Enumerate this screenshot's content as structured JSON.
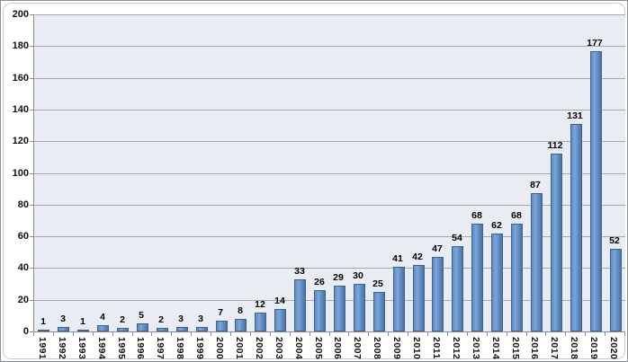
{
  "chart_data": {
    "type": "bar",
    "title": "",
    "xlabel": "",
    "ylabel": "",
    "categories": [
      "1991",
      "1992",
      "1993",
      "1994",
      "1995",
      "1996",
      "1997",
      "1998",
      "1999",
      "2000",
      "2001",
      "2002",
      "2003",
      "2004",
      "2005",
      "2006",
      "2007",
      "2008",
      "2009",
      "2010",
      "2011",
      "2012",
      "2013",
      "2014",
      "2015",
      "2016",
      "2017",
      "2018",
      "2019",
      "2020"
    ],
    "values": [
      1,
      3,
      1,
      4,
      2,
      5,
      2,
      3,
      3,
      7,
      8,
      12,
      14,
      33,
      26,
      29,
      30,
      25,
      41,
      42,
      47,
      54,
      68,
      62,
      68,
      87,
      112,
      131,
      177,
      52
    ],
    "data_labels_shown": true,
    "ylim": [
      0,
      200
    ],
    "ytick_step": 20,
    "yticks": [
      0,
      20,
      40,
      60,
      80,
      100,
      120,
      140,
      160,
      180,
      200
    ],
    "grid": true,
    "legend": false,
    "colors": {
      "bar_fill_light": "#7ea6d8",
      "bar_fill_mid": "#5d8ac2",
      "bar_fill_dark": "#4a759e",
      "bar_border": "#3b6395",
      "plot_bg": "#e9ecf3",
      "grid_line": "#a8a8a8",
      "axis_line": "#8c8c8c",
      "label_text": "#111111",
      "chart_bg": "#ffffff",
      "frame_border": "#c9c9c9"
    }
  }
}
